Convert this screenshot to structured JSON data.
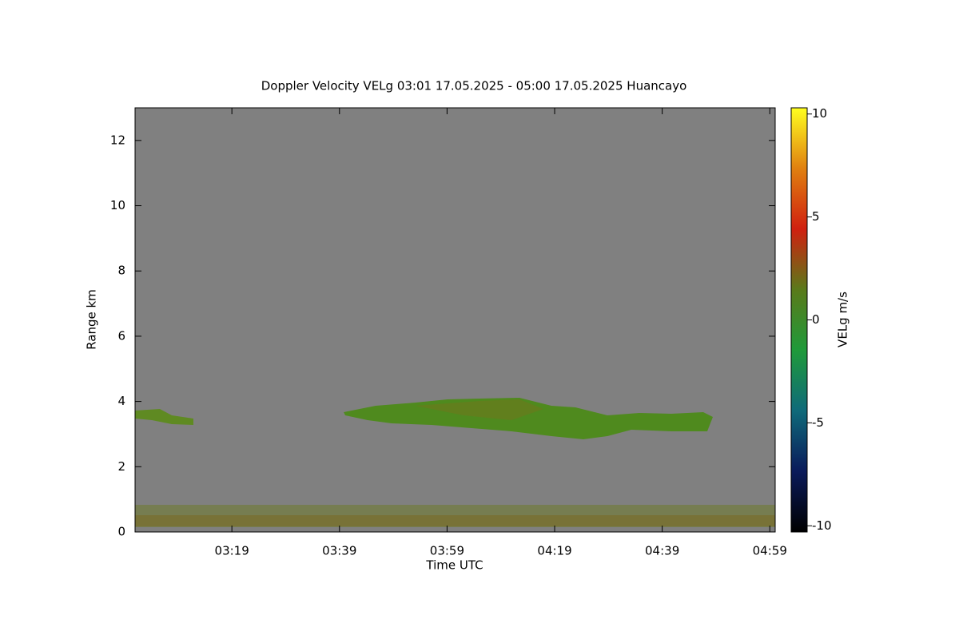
{
  "chart_data": {
    "type": "heatmap",
    "title": "Doppler Velocity VELg   03:01 17.05.2025 - 05:00 17.05.2025 Huancayo",
    "x_label": "Time UTC",
    "y_label": "Range km",
    "xlim": [
      181,
      300
    ],
    "xticks": [
      {
        "value": 199,
        "label": "03:19"
      },
      {
        "value": 219,
        "label": "03:39"
      },
      {
        "value": 239,
        "label": "03:59"
      },
      {
        "value": 259,
        "label": "04:19"
      },
      {
        "value": 279,
        "label": "04:39"
      },
      {
        "value": 299,
        "label": "04:59"
      }
    ],
    "ylim": [
      0,
      13
    ],
    "yticks": [
      0,
      2,
      4,
      6,
      8,
      10,
      12
    ],
    "colorbar": {
      "label": "VELg m/s",
      "lim": [
        -10.3,
        10.3
      ],
      "ticks": [
        -10,
        -5,
        0,
        5,
        10
      ],
      "colormap": [
        "#000000",
        "#0a1a5a",
        "#0f6a7a",
        "#1f9a3a",
        "#5a7a1a",
        "#d02010",
        "#e08010",
        "#ffff20"
      ]
    },
    "background": "#808080"
  }
}
